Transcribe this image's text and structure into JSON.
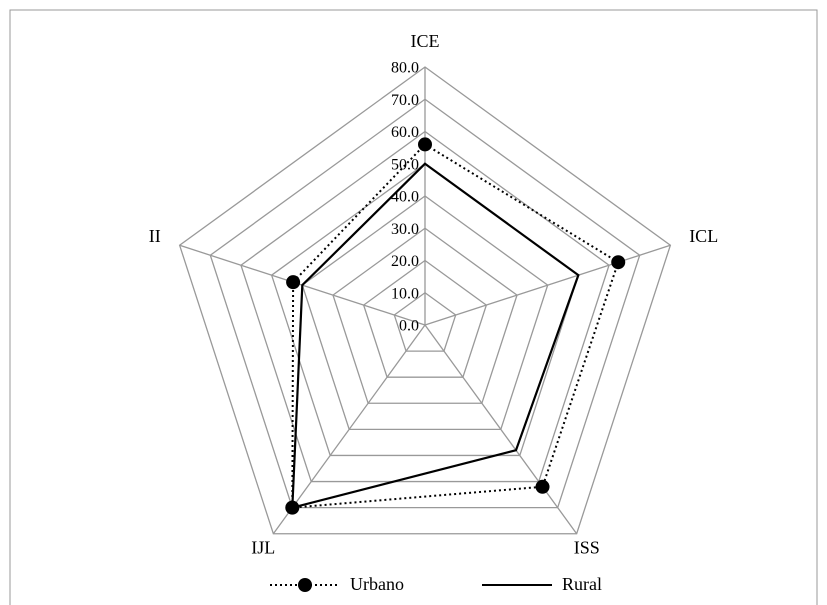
{
  "chart_data": {
    "type": "radar",
    "categories": [
      "ICE",
      "ICL",
      "ISS",
      "IJL",
      "II"
    ],
    "series": [
      {
        "name": "Urbano",
        "color": "#000000",
        "line_style": "dotted",
        "markers": true,
        "values": [
          56,
          63,
          62,
          70,
          43
        ]
      },
      {
        "name": "Rural",
        "color": "#000000",
        "line_style": "solid",
        "markers": false,
        "values": [
          50,
          50,
          48,
          70,
          40
        ]
      }
    ],
    "ylim": [
      0,
      80
    ],
    "yticks": [
      {
        "value": 0,
        "label": "0.0"
      },
      {
        "value": 10,
        "label": "10.0"
      },
      {
        "value": 20,
        "label": "20.0"
      },
      {
        "value": 30,
        "label": "30.0"
      },
      {
        "value": 40,
        "label": "40.0"
      },
      {
        "value": 50,
        "label": "50.0"
      },
      {
        "value": 60,
        "label": "60.0"
      },
      {
        "value": 70,
        "label": "70.0"
      },
      {
        "value": 80,
        "label": "80.0"
      }
    ],
    "grid": true,
    "legend": "bottom"
  }
}
